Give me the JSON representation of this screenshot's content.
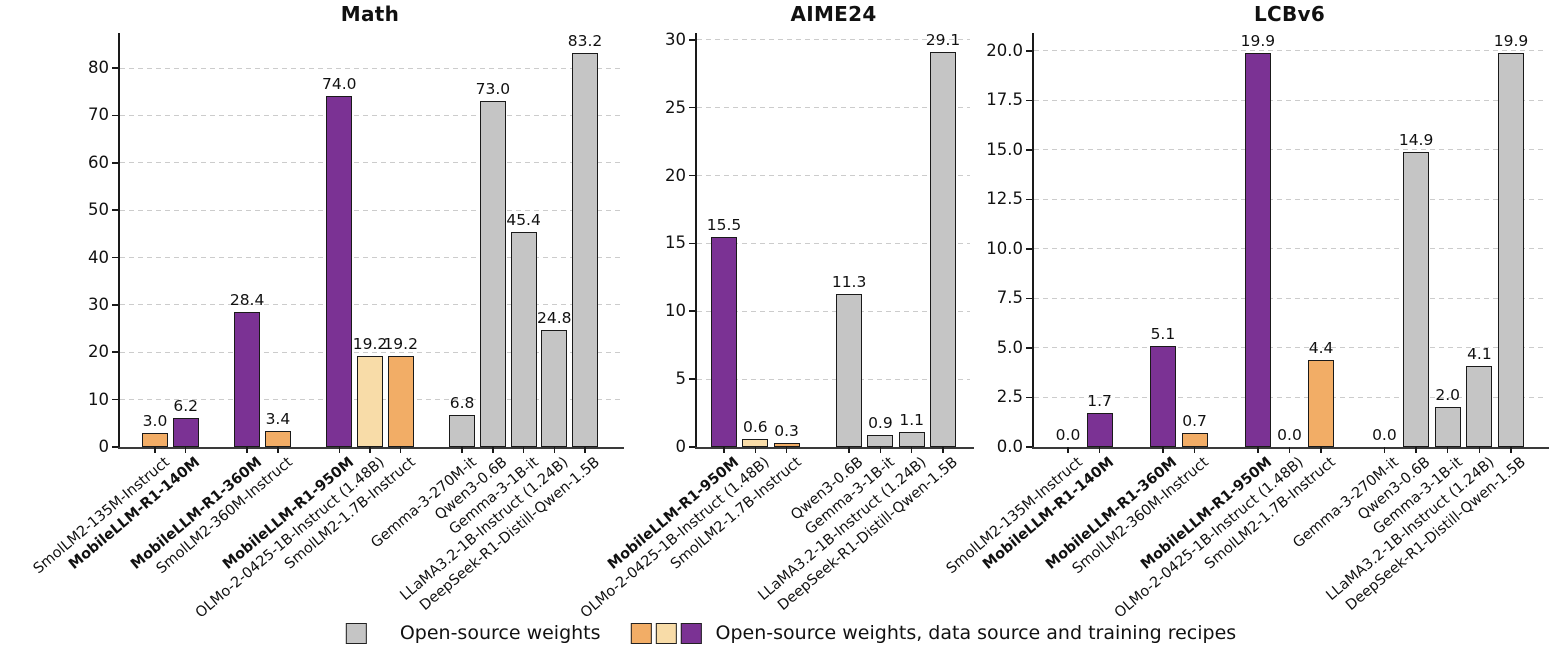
{
  "figure": {
    "background": "#ffffff",
    "colors": {
      "open_weights_gray": "#c5c5c5",
      "full_open_orange": "#f2ad66",
      "full_open_cream": "#f8dca8",
      "full_open_purple": "#7b3294",
      "bar_edge": "#1a1a1a",
      "grid": "#cccccc",
      "axis": "#3a3a3a"
    },
    "legend": {
      "position": "bottom-center",
      "items": [
        {
          "label": "Open-source weights",
          "swatches": [
            "open_weights_gray"
          ]
        },
        {
          "label": "Open-source weights, data source and training recipes",
          "swatches": [
            "full_open_orange",
            "full_open_cream",
            "full_open_purple"
          ]
        }
      ]
    }
  },
  "chart_data": [
    {
      "type": "bar",
      "title": "Math",
      "grid": true,
      "ylim": [
        0,
        87.4
      ],
      "slots": 15,
      "yticks": [
        {
          "v": 0,
          "label": "0"
        },
        {
          "v": 10,
          "label": "10"
        },
        {
          "v": 20,
          "label": "20"
        },
        {
          "v": 30,
          "label": "30"
        },
        {
          "v": 40,
          "label": "40"
        },
        {
          "v": 50,
          "label": "50"
        },
        {
          "v": 60,
          "label": "60"
        },
        {
          "v": 70,
          "label": "70"
        },
        {
          "v": 80,
          "label": "80"
        }
      ],
      "bars": [
        {
          "slot": 0,
          "label": "SmolLM2-135M-Instruct",
          "value": 3.0,
          "display": "3.0",
          "color": "full_open_orange",
          "bold": false
        },
        {
          "slot": 1,
          "label": "MobileLLM-R1-140M",
          "value": 6.2,
          "display": "6.2",
          "color": "full_open_purple",
          "bold": true
        },
        {
          "slot": 3,
          "label": "MobileLLM-R1-360M",
          "value": 28.4,
          "display": "28.4",
          "color": "full_open_purple",
          "bold": true
        },
        {
          "slot": 4,
          "label": "SmolLM2-360M-Instruct",
          "value": 3.4,
          "display": "3.4",
          "color": "full_open_orange",
          "bold": false
        },
        {
          "slot": 6,
          "label": "MobileLLM-R1-950M",
          "value": 74.0,
          "display": "74.0",
          "color": "full_open_purple",
          "bold": true
        },
        {
          "slot": 7,
          "label": "OLMo-2-0425-1B-Instruct (1.48B)",
          "value": 19.2,
          "display": "19.2",
          "color": "full_open_cream",
          "bold": false
        },
        {
          "slot": 8,
          "label": "SmolLM2-1.7B-Instruct",
          "value": 19.2,
          "display": "19.2",
          "color": "full_open_orange",
          "bold": false
        },
        {
          "slot": 10,
          "label": "Gemma-3-270M-it",
          "value": 6.8,
          "display": "6.8",
          "color": "open_weights_gray",
          "bold": false
        },
        {
          "slot": 11,
          "label": "Qwen3-0.6B",
          "value": 73.0,
          "display": "73.0",
          "color": "open_weights_gray",
          "bold": false
        },
        {
          "slot": 12,
          "label": "Gemma-3-1B-it",
          "value": 45.4,
          "display": "45.4",
          "color": "open_weights_gray",
          "bold": false
        },
        {
          "slot": 13,
          "label": "LLaMA3.2-1B-Instruct (1.24B)",
          "value": 24.8,
          "display": "24.8",
          "color": "open_weights_gray",
          "bold": false
        },
        {
          "slot": 14,
          "label": "DeepSeek-R1-Distill-Qwen-1.5B",
          "value": 83.2,
          "display": "83.2",
          "color": "open_weights_gray",
          "bold": false
        }
      ]
    },
    {
      "type": "bar",
      "title": "AIME24",
      "grid": true,
      "ylim": [
        0,
        30.5
      ],
      "slots": 8,
      "yticks": [
        {
          "v": 0,
          "label": "0"
        },
        {
          "v": 5,
          "label": "5"
        },
        {
          "v": 10,
          "label": "10"
        },
        {
          "v": 15,
          "label": "15"
        },
        {
          "v": 20,
          "label": "20"
        },
        {
          "v": 25,
          "label": "25"
        },
        {
          "v": 30,
          "label": "30"
        }
      ],
      "bars": [
        {
          "slot": 0,
          "label": "MobileLLM-R1-950M",
          "value": 15.5,
          "display": "15.5",
          "color": "full_open_purple",
          "bold": true
        },
        {
          "slot": 1,
          "label": "OLMo-2-0425-1B-Instruct (1.48B)",
          "value": 0.6,
          "display": "0.6",
          "color": "full_open_cream",
          "bold": false
        },
        {
          "slot": 2,
          "label": "SmolLM2-1.7B-Instruct",
          "value": 0.3,
          "display": "0.3",
          "color": "full_open_orange",
          "bold": false
        },
        {
          "slot": 4,
          "label": "Qwen3-0.6B",
          "value": 11.3,
          "display": "11.3",
          "color": "open_weights_gray",
          "bold": false
        },
        {
          "slot": 5,
          "label": "Gemma-3-1B-it",
          "value": 0.9,
          "display": "0.9",
          "color": "open_weights_gray",
          "bold": false
        },
        {
          "slot": 6,
          "label": "LLaMA3.2-1B-Instruct (1.24B)",
          "value": 1.1,
          "display": "1.1",
          "color": "open_weights_gray",
          "bold": false
        },
        {
          "slot": 7,
          "label": "DeepSeek-R1-Distill-Qwen-1.5B",
          "value": 29.1,
          "display": "29.1",
          "color": "open_weights_gray",
          "bold": false
        }
      ]
    },
    {
      "type": "bar",
      "title": "LCBv6",
      "grid": true,
      "ylim": [
        0,
        20.9
      ],
      "slots": 15,
      "yticks": [
        {
          "v": 0,
          "label": "0.0"
        },
        {
          "v": 2.5,
          "label": "2.5"
        },
        {
          "v": 5,
          "label": "5.0"
        },
        {
          "v": 7.5,
          "label": "7.5"
        },
        {
          "v": 10,
          "label": "10.0"
        },
        {
          "v": 12.5,
          "label": "12.5"
        },
        {
          "v": 15,
          "label": "15.0"
        },
        {
          "v": 17.5,
          "label": "17.5"
        },
        {
          "v": 20,
          "label": "20.0"
        }
      ],
      "bars": [
        {
          "slot": 0,
          "label": "SmolLM2-135M-Instruct",
          "value": 0.0,
          "display": "0.0",
          "color": "full_open_orange",
          "bold": false
        },
        {
          "slot": 1,
          "label": "MobileLLM-R1-140M",
          "value": 1.7,
          "display": "1.7",
          "color": "full_open_purple",
          "bold": true
        },
        {
          "slot": 3,
          "label": "MobileLLM-R1-360M",
          "value": 5.1,
          "display": "5.1",
          "color": "full_open_purple",
          "bold": true
        },
        {
          "slot": 4,
          "label": "SmolLM2-360M-Instruct",
          "value": 0.7,
          "display": "0.7",
          "color": "full_open_orange",
          "bold": false
        },
        {
          "slot": 6,
          "label": "MobileLLM-R1-950M",
          "value": 19.9,
          "display": "19.9",
          "color": "full_open_purple",
          "bold": true
        },
        {
          "slot": 7,
          "label": "OLMo-2-0425-1B-Instruct (1.48B)",
          "value": 0.0,
          "display": "0.0",
          "color": "full_open_cream",
          "bold": false
        },
        {
          "slot": 8,
          "label": "SmolLM2-1.7B-Instruct",
          "value": 4.4,
          "display": "4.4",
          "color": "full_open_orange",
          "bold": false
        },
        {
          "slot": 10,
          "label": "Gemma-3-270M-it",
          "value": 0.0,
          "display": "0.0",
          "color": "open_weights_gray",
          "bold": false
        },
        {
          "slot": 11,
          "label": "Qwen3-0.6B",
          "value": 14.9,
          "display": "14.9",
          "color": "open_weights_gray",
          "bold": false
        },
        {
          "slot": 12,
          "label": "Gemma-3-1B-it",
          "value": 2.0,
          "display": "2.0",
          "color": "open_weights_gray",
          "bold": false
        },
        {
          "slot": 13,
          "label": "LLaMA3.2-1B-Instruct (1.24B)",
          "value": 4.1,
          "display": "4.1",
          "color": "open_weights_gray",
          "bold": false
        },
        {
          "slot": 14,
          "label": "DeepSeek-R1-Distill-Qwen-1.5B",
          "value": 19.9,
          "display": "19.9",
          "color": "open_weights_gray",
          "bold": false
        }
      ]
    }
  ]
}
